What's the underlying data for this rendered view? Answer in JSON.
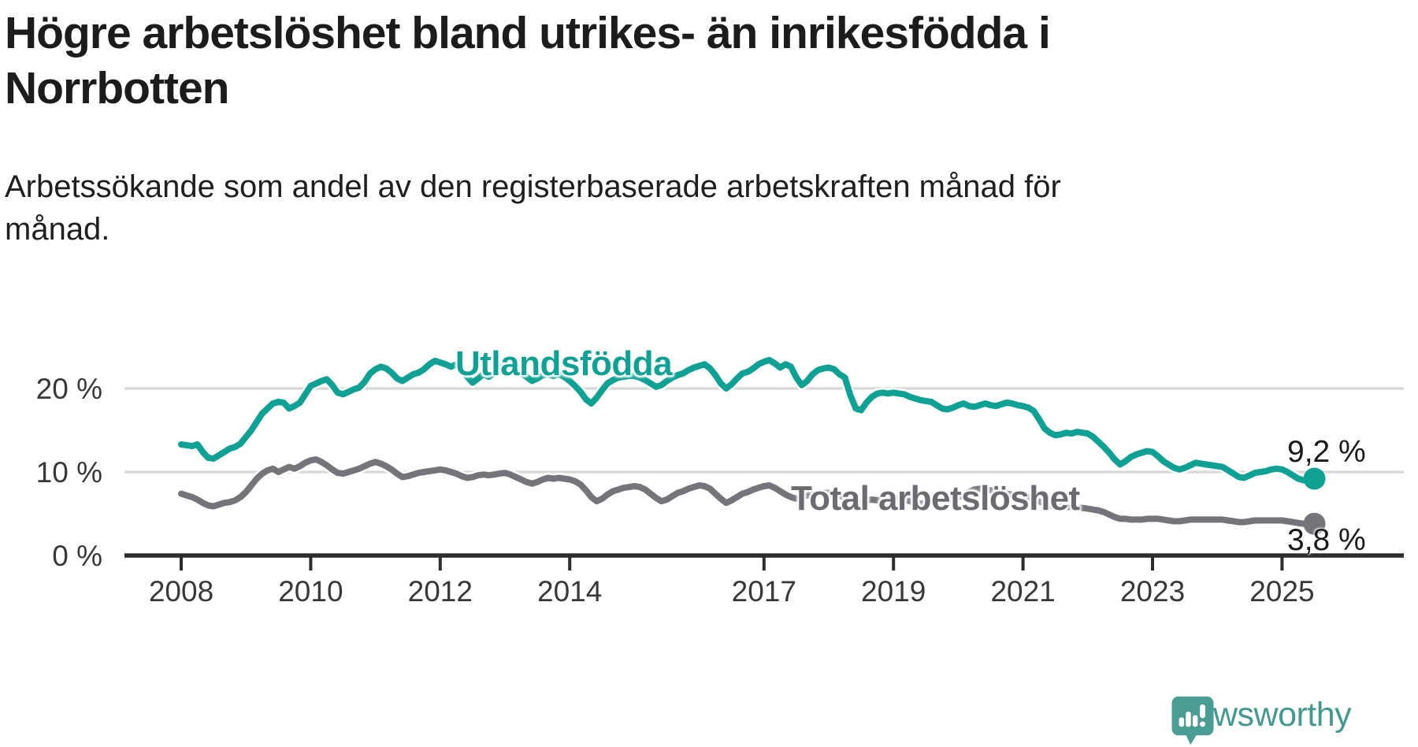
{
  "header": {
    "title": "Högre arbetslöshet bland utrikes- än inrikesfödda i Norrbotten",
    "subtitle": "Arbetssökande som andel av den registerbaserade arbetskraften månad för månad."
  },
  "branding": {
    "logo_text": "Newsworthy",
    "logo_icon": "newsworthy-speech-bubble-chart-icon",
    "logo_color": "#4A9D93"
  },
  "chart_data": {
    "type": "line",
    "unit": "%",
    "x_axis": {
      "start": "2008-01",
      "end": "2025-07",
      "interval": "monthly",
      "ticks": [
        {
          "year": 2008,
          "label": "2008"
        },
        {
          "year": 2010,
          "label": "2010"
        },
        {
          "year": 2012,
          "label": "2012"
        },
        {
          "year": 2014,
          "label": "2014"
        },
        {
          "year": 2017,
          "label": "2017"
        },
        {
          "year": 2019,
          "label": "2019"
        },
        {
          "year": 2021,
          "label": "2021"
        },
        {
          "year": 2023,
          "label": "2023"
        },
        {
          "year": 2025,
          "label": "2025"
        }
      ]
    },
    "y_axis": {
      "range": [
        0,
        24
      ],
      "ticks": [
        {
          "value": 0,
          "label": "0 %"
        },
        {
          "value": 10,
          "label": "10 %"
        },
        {
          "value": 20,
          "label": "20 %"
        }
      ]
    },
    "style": {
      "grid_color": "#DADADA",
      "axis_color": "#2D2D2D",
      "tick_label_color": "#383838"
    },
    "legend": "inline-labels",
    "series": [
      {
        "id": "utlandsfodda",
        "name": "Utlandsfödda",
        "color": "#0FA294",
        "end_value": 9.2,
        "end_value_label": "9,2 %",
        "values": [
          13.3,
          13.2,
          13.1,
          13.3,
          12.4,
          11.7,
          11.6,
          12.0,
          12.4,
          12.8,
          13.0,
          13.4,
          14.2,
          15.0,
          16.0,
          17.0,
          17.6,
          18.2,
          18.4,
          18.3,
          17.6,
          17.9,
          18.3,
          19.3,
          20.3,
          20.6,
          20.9,
          21.1,
          20.4,
          19.5,
          19.3,
          19.6,
          19.9,
          20.1,
          20.8,
          21.8,
          22.3,
          22.6,
          22.4,
          21.9,
          21.2,
          20.9,
          21.3,
          21.7,
          21.9,
          22.3,
          22.9,
          23.3,
          23.1,
          22.9,
          22.6,
          22.9,
          22.3,
          21.4,
          20.7,
          21.2,
          21.7,
          21.4,
          21.8,
          22.4,
          22.8,
          22.6,
          22.3,
          21.9,
          21.4,
          20.9,
          21.2,
          21.6,
          21.7,
          21.5,
          21.7,
          21.4,
          20.9,
          20.3,
          19.6,
          18.7,
          18.2,
          18.9,
          19.8,
          20.6,
          21.0,
          21.3,
          21.4,
          21.5,
          21.5,
          21.3,
          21.0,
          20.6,
          20.2,
          20.4,
          20.9,
          21.3,
          21.6,
          21.8,
          22.2,
          22.5,
          22.7,
          22.9,
          22.4,
          21.6,
          20.6,
          20.0,
          20.5,
          21.2,
          21.8,
          22.0,
          22.4,
          22.9,
          23.2,
          23.4,
          23.0,
          22.5,
          22.9,
          22.6,
          21.3,
          20.4,
          20.9,
          21.7,
          22.2,
          22.4,
          22.5,
          22.3,
          21.7,
          21.3,
          19.2,
          17.6,
          17.4,
          18.3,
          19.0,
          19.4,
          19.5,
          19.4,
          19.5,
          19.4,
          19.3,
          19.0,
          18.8,
          18.6,
          18.5,
          18.4,
          18.0,
          17.6,
          17.5,
          17.7,
          18.0,
          18.2,
          17.9,
          17.8,
          18.0,
          18.2,
          18.0,
          17.9,
          18.1,
          18.3,
          18.2,
          18.0,
          17.9,
          17.7,
          17.3,
          16.3,
          15.2,
          14.7,
          14.4,
          14.5,
          14.7,
          14.6,
          14.8,
          14.7,
          14.6,
          14.2,
          13.6,
          13.0,
          12.3,
          11.5,
          10.9,
          11.3,
          11.8,
          12.1,
          12.3,
          12.5,
          12.4,
          11.9,
          11.3,
          10.9,
          10.5,
          10.3,
          10.5,
          10.8,
          11.1,
          11.0,
          10.9,
          10.8,
          10.7,
          10.6,
          10.2,
          9.8,
          9.4,
          9.3,
          9.6,
          9.9,
          10.0,
          10.1,
          10.3,
          10.4,
          10.3,
          10.0,
          9.6,
          9.2,
          9.0,
          9.1,
          9.2
        ]
      },
      {
        "id": "total",
        "name": "Total arbetslöshet",
        "color": "#76737B",
        "end_value": 3.8,
        "end_value_label": "3,8 %",
        "values": [
          7.4,
          7.2,
          7.0,
          6.7,
          6.3,
          6.0,
          5.9,
          6.1,
          6.3,
          6.4,
          6.6,
          7.0,
          7.6,
          8.4,
          9.2,
          9.8,
          10.2,
          10.4,
          10.0,
          10.3,
          10.6,
          10.4,
          10.7,
          11.1,
          11.4,
          11.5,
          11.2,
          10.8,
          10.3,
          9.9,
          9.8,
          10.0,
          10.2,
          10.4,
          10.7,
          11.0,
          11.2,
          11.0,
          10.7,
          10.3,
          9.8,
          9.4,
          9.5,
          9.7,
          9.9,
          10.0,
          10.1,
          10.2,
          10.3,
          10.2,
          10.0,
          9.8,
          9.5,
          9.3,
          9.4,
          9.6,
          9.7,
          9.6,
          9.7,
          9.8,
          9.9,
          9.7,
          9.4,
          9.1,
          8.8,
          8.6,
          8.8,
          9.1,
          9.3,
          9.2,
          9.3,
          9.2,
          9.1,
          8.9,
          8.5,
          7.8,
          7.0,
          6.5,
          6.8,
          7.3,
          7.7,
          7.9,
          8.1,
          8.2,
          8.3,
          8.2,
          7.9,
          7.4,
          6.9,
          6.5,
          6.7,
          7.1,
          7.5,
          7.7,
          8.0,
          8.2,
          8.4,
          8.3,
          8.0,
          7.4,
          6.8,
          6.3,
          6.6,
          7.0,
          7.4,
          7.6,
          7.9,
          8.1,
          8.3,
          8.4,
          8.1,
          7.7,
          7.3,
          7.0,
          6.8,
          7.0,
          7.2,
          7.3,
          7.4,
          7.5,
          7.5,
          7.4,
          7.2,
          6.9,
          6.5,
          6.3,
          6.4,
          6.6,
          6.7,
          6.6,
          6.7,
          6.8,
          6.9,
          6.8,
          6.7,
          6.5,
          6.3,
          6.2,
          6.3,
          6.5,
          6.6,
          6.6,
          6.7,
          6.8,
          7.0,
          7.2,
          7.6,
          7.9,
          8.0,
          7.9,
          7.8,
          7.7,
          7.6,
          7.4,
          7.3,
          7.2,
          7.1,
          7.0,
          6.8,
          6.5,
          6.2,
          6.0,
          5.9,
          5.9,
          5.8,
          5.8,
          5.7,
          5.7,
          5.6,
          5.5,
          5.4,
          5.2,
          4.9,
          4.6,
          4.4,
          4.4,
          4.3,
          4.3,
          4.3,
          4.4,
          4.4,
          4.4,
          4.3,
          4.2,
          4.1,
          4.1,
          4.2,
          4.3,
          4.3,
          4.3,
          4.3,
          4.3,
          4.3,
          4.3,
          4.2,
          4.1,
          4.0,
          4.0,
          4.1,
          4.2,
          4.2,
          4.2,
          4.2,
          4.2,
          4.2,
          4.1,
          4.0,
          3.9,
          3.8,
          3.8,
          3.8
        ]
      }
    ]
  }
}
